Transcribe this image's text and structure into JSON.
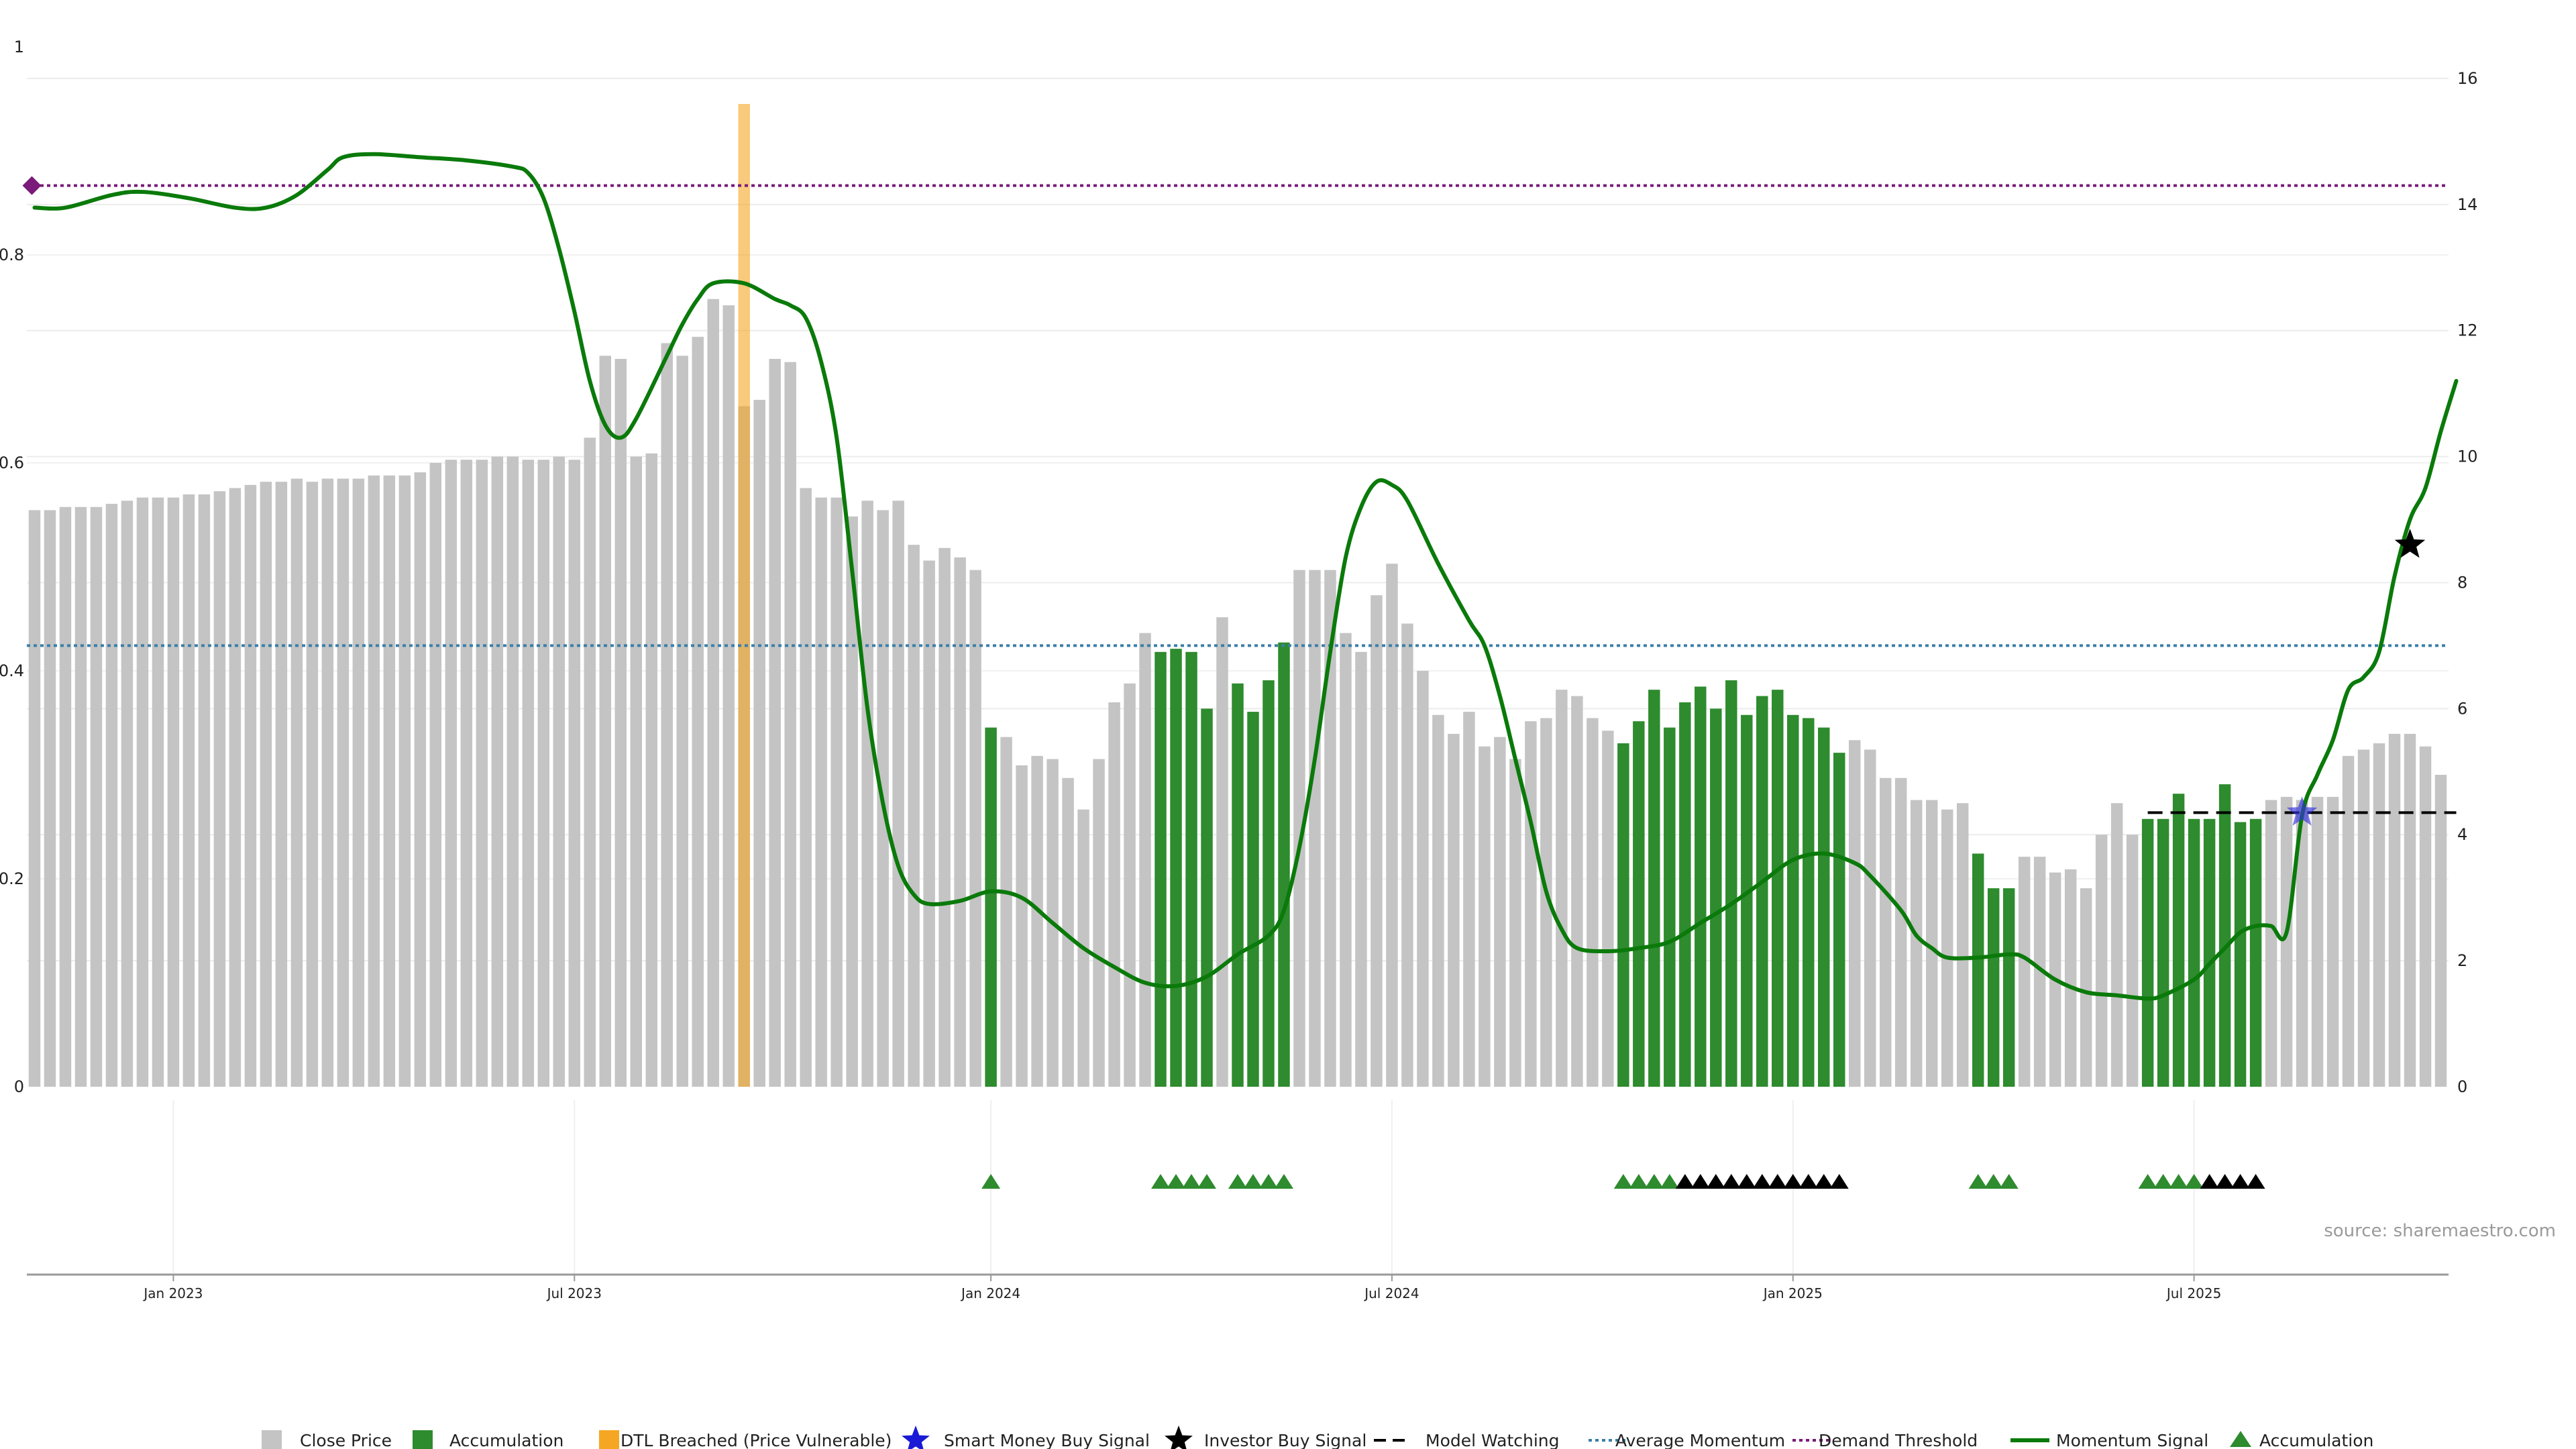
{
  "source_label": "source: sharemaestro.com",
  "colors": {
    "close_price": "#c4c4c4",
    "accumulation": "#2e8b2e",
    "dtl": "#f5a623",
    "momentum": "#0a7a0a",
    "average_momentum": "#3a7fa8",
    "demand_threshold": "#7a1a7a",
    "model_watching": "#000000",
    "smart_money": "#3333dd",
    "investor": "#000000"
  },
  "legend": [
    {
      "key": "close_price",
      "label": "Close Price"
    },
    {
      "key": "accumulation_bar",
      "label": "Accumulation"
    },
    {
      "key": "dtl",
      "label": "DTL Breached (Price Vulnerable)"
    },
    {
      "key": "smart_money",
      "label": "Smart Money Buy Signal"
    },
    {
      "key": "investor",
      "label": "Investor Buy Signal"
    },
    {
      "key": "model_watching",
      "label": "Model Watching"
    },
    {
      "key": "average_momentum",
      "label": "Average Momentum"
    },
    {
      "key": "demand_threshold",
      "label": "Demand Threshold"
    },
    {
      "key": "momentum",
      "label": "Momentum Signal"
    },
    {
      "key": "accumulation_marker",
      "label": "Accumulation"
    }
  ],
  "chart_data": {
    "type": "bar",
    "left_axis": {
      "range": [
        0,
        1
      ],
      "ticks": [
        "0",
        "0.2",
        "0.4",
        "0.6",
        "0.8",
        "1"
      ]
    },
    "right_axis": {
      "range": [
        0,
        16.5
      ],
      "ticks": [
        "0",
        "2",
        "4",
        "6",
        "8",
        "10",
        "12",
        "14",
        "16"
      ]
    },
    "x_axis": {
      "tick_labels": [
        "Jan 2023",
        "Jul 2023",
        "Jan 2024",
        "Jul 2024",
        "Jan 2025",
        "Jul 2025"
      ],
      "tick_bar_index": [
        9,
        35,
        62,
        88,
        114,
        140
      ]
    },
    "close_price": [
      9.15,
      9.15,
      9.2,
      9.2,
      9.2,
      9.25,
      9.3,
      9.35,
      9.35,
      9.35,
      9.4,
      9.4,
      9.45,
      9.5,
      9.55,
      9.6,
      9.6,
      9.65,
      9.6,
      9.65,
      9.65,
      9.65,
      9.7,
      9.7,
      9.7,
      9.75,
      9.9,
      9.95,
      9.95,
      9.95,
      10.0,
      10.0,
      9.95,
      9.95,
      10.0,
      9.95,
      10.3,
      11.6,
      11.55,
      10.0,
      10.05,
      11.8,
      11.6,
      11.9,
      12.5,
      12.4,
      10.8,
      10.9,
      11.55,
      11.5,
      9.5,
      9.35,
      9.35,
      9.05,
      9.3,
      9.15,
      9.3,
      8.6,
      8.35,
      8.55,
      8.4,
      8.2,
      5.7,
      5.55,
      5.1,
      5.25,
      5.2,
      4.9,
      4.4,
      5.2,
      6.1,
      6.4,
      7.2,
      6.9,
      6.95,
      6.9,
      6.0,
      7.45,
      6.4,
      5.95,
      6.45,
      7.05,
      8.2,
      8.2,
      8.2,
      7.2,
      6.9,
      7.8,
      8.3,
      7.35,
      6.6,
      5.9,
      5.6,
      5.95,
      5.4,
      5.55,
      5.2,
      5.8,
      5.85,
      6.3,
      6.2,
      5.85,
      5.65,
      5.45,
      5.8,
      6.3,
      5.7,
      6.1,
      6.35,
      6.0,
      6.45,
      5.9,
      6.2,
      6.3,
      5.9,
      5.85,
      5.7,
      5.3,
      5.5,
      5.35,
      4.9,
      4.9,
      4.55,
      4.55,
      4.4,
      4.5,
      3.7,
      3.15,
      3.15,
      3.65,
      3.65,
      3.4,
      3.45,
      3.15,
      4.0,
      4.5,
      4.0,
      4.25,
      4.25,
      4.65,
      4.25,
      4.25,
      4.8,
      4.2,
      4.25,
      4.55,
      4.6,
      4.55,
      4.6,
      4.6,
      5.25,
      5.35,
      5.45,
      5.6,
      5.6,
      5.4,
      4.95
    ],
    "accumulation_bars": [
      62,
      73,
      74,
      75,
      76,
      78,
      79,
      80,
      81,
      103,
      104,
      105,
      106,
      107,
      108,
      109,
      110,
      111,
      112,
      113,
      114,
      115,
      116,
      117,
      126,
      127,
      128,
      137,
      138,
      139,
      140,
      141,
      142,
      143,
      144
    ],
    "dtl_breached_bars": [
      46
    ],
    "momentum_signal": [
      [
        0,
        13.95
      ],
      [
        2,
        13.95
      ],
      [
        5,
        14.15
      ],
      [
        7,
        14.2
      ],
      [
        10,
        14.1
      ],
      [
        13,
        13.95
      ],
      [
        15,
        13.95
      ],
      [
        17,
        14.15
      ],
      [
        19,
        14.55
      ],
      [
        20,
        14.75
      ],
      [
        22,
        14.8
      ],
      [
        25,
        14.75
      ],
      [
        28,
        14.7
      ],
      [
        31,
        14.6
      ],
      [
        32,
        14.5
      ],
      [
        33,
        14.1
      ],
      [
        34,
        13.3
      ],
      [
        35,
        12.3
      ],
      [
        36,
        11.2
      ],
      [
        37,
        10.5
      ],
      [
        38,
        10.3
      ],
      [
        39,
        10.6
      ],
      [
        41,
        11.6
      ],
      [
        42,
        12.1
      ],
      [
        43,
        12.5
      ],
      [
        44,
        12.75
      ],
      [
        46,
        12.75
      ],
      [
        48,
        12.5
      ],
      [
        49,
        12.4
      ],
      [
        50,
        12.2
      ],
      [
        51,
        11.5
      ],
      [
        52,
        10.3
      ],
      [
        53,
        8.2
      ],
      [
        54,
        6.0
      ],
      [
        55,
        4.5
      ],
      [
        56,
        3.5
      ],
      [
        57,
        3.05
      ],
      [
        58,
        2.9
      ],
      [
        60,
        2.95
      ],
      [
        62,
        3.1
      ],
      [
        64,
        3.0
      ],
      [
        66,
        2.6
      ],
      [
        68,
        2.2
      ],
      [
        70,
        1.9
      ],
      [
        72,
        1.65
      ],
      [
        74,
        1.6
      ],
      [
        76,
        1.75
      ],
      [
        78,
        2.1
      ],
      [
        80,
        2.4
      ],
      [
        81,
        2.8
      ],
      [
        82,
        3.8
      ],
      [
        83,
        5.2
      ],
      [
        84,
        6.9
      ],
      [
        85,
        8.4
      ],
      [
        86,
        9.2
      ],
      [
        87,
        9.6
      ],
      [
        88,
        9.55
      ],
      [
        89,
        9.3
      ],
      [
        91,
        8.3
      ],
      [
        93,
        7.4
      ],
      [
        94,
        7.0
      ],
      [
        95,
        6.2
      ],
      [
        96,
        5.2
      ],
      [
        97,
        4.2
      ],
      [
        98,
        3.1
      ],
      [
        99,
        2.5
      ],
      [
        100,
        2.2
      ],
      [
        102,
        2.15
      ],
      [
        104,
        2.2
      ],
      [
        106,
        2.3
      ],
      [
        108,
        2.6
      ],
      [
        110,
        2.9
      ],
      [
        112,
        3.25
      ],
      [
        114,
        3.6
      ],
      [
        116,
        3.7
      ],
      [
        118,
        3.55
      ],
      [
        119,
        3.35
      ],
      [
        121,
        2.8
      ],
      [
        122,
        2.4
      ],
      [
        123,
        2.2
      ],
      [
        124,
        2.05
      ],
      [
        126,
        2.05
      ],
      [
        128,
        2.1
      ],
      [
        129,
        2.05
      ],
      [
        131,
        1.7
      ],
      [
        133,
        1.5
      ],
      [
        135,
        1.45
      ],
      [
        137,
        1.4
      ],
      [
        138,
        1.45
      ],
      [
        140,
        1.7
      ],
      [
        141,
        1.95
      ],
      [
        142,
        2.2
      ],
      [
        143,
        2.45
      ],
      [
        144,
        2.55
      ],
      [
        145,
        2.55
      ],
      [
        146,
        2.45
      ],
      [
        147,
        4.3
      ],
      [
        148,
        4.95
      ],
      [
        149,
        5.5
      ],
      [
        150,
        6.3
      ],
      [
        151,
        6.5
      ],
      [
        152,
        6.9
      ],
      [
        153,
        8.1
      ],
      [
        154,
        9.0
      ],
      [
        155,
        9.5
      ],
      [
        156,
        10.4
      ],
      [
        157,
        11.2
      ]
    ],
    "demand_threshold": 14.3,
    "average_momentum": 7.0,
    "model_watching": {
      "value": 4.35,
      "from_bar": 137,
      "to_bar": 157
    },
    "smart_money_buy_signals": [
      {
        "bar": 147,
        "value": 4.35
      }
    ],
    "investor_buy_signals": [
      {
        "bar": 154,
        "value": 8.6
      }
    ],
    "demand_marker": {
      "bar": 0,
      "value": 14.3
    },
    "accumulation_markers": [
      62,
      73,
      74,
      75,
      76,
      78,
      79,
      80,
      81,
      103,
      104,
      105,
      106,
      126,
      127,
      128,
      137,
      138,
      139,
      140
    ],
    "investor_markers": [
      107,
      108,
      109,
      110,
      111,
      112,
      113,
      114,
      115,
      116,
      117,
      141,
      142,
      143,
      144
    ]
  }
}
